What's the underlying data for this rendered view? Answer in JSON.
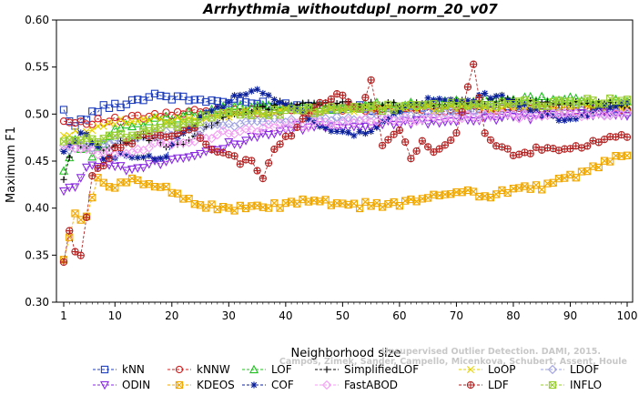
{
  "chart_data": {
    "type": "line",
    "title": "Arrhythmia_withoutdupl_norm_20_v07",
    "xlabel": "Neighborhood size",
    "ylabel": "Maximum F1",
    "xlim": [
      1,
      100
    ],
    "ylim": [
      0.3,
      0.6
    ],
    "x_ticks": [
      1,
      10,
      20,
      30,
      40,
      50,
      60,
      70,
      80,
      90,
      100
    ],
    "y_ticks": [
      "0.30",
      "0.35",
      "0.40",
      "0.45",
      "0.50",
      "0.55",
      "0.60"
    ],
    "grid": false,
    "legend_position": "bottom",
    "annotation_lines": [
      "Campos, Zimek, Sander, Campello, Micenkova, Schubert, Assent, Houle",
      "Unsupervised Outlier Detection. DAMI, 2015."
    ],
    "series": [
      {
        "name": "kNN",
        "color": "#1f3fbf",
        "marker": "square",
        "anchors": [
          [
            1,
            0.503
          ],
          [
            3,
            0.488
          ],
          [
            7,
            0.505
          ],
          [
            12,
            0.512
          ],
          [
            17,
            0.521
          ],
          [
            22,
            0.516
          ],
          [
            30,
            0.513
          ],
          [
            50,
            0.507
          ],
          [
            70,
            0.506
          ],
          [
            90,
            0.507
          ],
          [
            100,
            0.505
          ]
        ]
      },
      {
        "name": "kNNW",
        "color": "#d02020",
        "marker": "circle",
        "anchors": [
          [
            1,
            0.492
          ],
          [
            5,
            0.492
          ],
          [
            10,
            0.493
          ],
          [
            20,
            0.5
          ],
          [
            30,
            0.504
          ],
          [
            50,
            0.505
          ],
          [
            70,
            0.506
          ],
          [
            100,
            0.507
          ]
        ]
      },
      {
        "name": "LOF",
        "color": "#22c022",
        "marker": "triangle-up",
        "anchors": [
          [
            1,
            0.44
          ],
          [
            3,
            0.47
          ],
          [
            6,
            0.458
          ],
          [
            10,
            0.482
          ],
          [
            15,
            0.49
          ],
          [
            20,
            0.497
          ],
          [
            30,
            0.506
          ],
          [
            50,
            0.508
          ],
          [
            70,
            0.512
          ],
          [
            85,
            0.516
          ],
          [
            100,
            0.512
          ]
        ]
      },
      {
        "name": "SimplifiedLOF",
        "color": "#000000",
        "marker": "plus",
        "anchors": [
          [
            1,
            0.432
          ],
          [
            3,
            0.47
          ],
          [
            8,
            0.465
          ],
          [
            15,
            0.475
          ],
          [
            20,
            0.465
          ],
          [
            25,
            0.48
          ],
          [
            30,
            0.498
          ],
          [
            40,
            0.512
          ],
          [
            60,
            0.51
          ],
          [
            80,
            0.514
          ],
          [
            100,
            0.51
          ]
        ]
      },
      {
        "name": "LoOP",
        "color": "#e6d200",
        "marker": "x",
        "anchors": [
          [
            1,
            0.475
          ],
          [
            8,
            0.49
          ],
          [
            20,
            0.495
          ],
          [
            30,
            0.5
          ],
          [
            50,
            0.505
          ],
          [
            70,
            0.506
          ],
          [
            100,
            0.508
          ]
        ]
      },
      {
        "name": "LDOF",
        "color": "#9ea0e0",
        "marker": "diamond",
        "anchors": [
          [
            1,
            0.46
          ],
          [
            10,
            0.47
          ],
          [
            20,
            0.48
          ],
          [
            30,
            0.49
          ],
          [
            50,
            0.495
          ],
          [
            70,
            0.5
          ],
          [
            100,
            0.502
          ]
        ]
      },
      {
        "name": "ODIN",
        "color": "#8a2be2",
        "marker": "triangle-down",
        "anchors": [
          [
            1,
            0.418
          ],
          [
            3,
            0.425
          ],
          [
            6,
            0.448
          ],
          [
            12,
            0.443
          ],
          [
            17,
            0.448
          ],
          [
            22,
            0.455
          ],
          [
            32,
            0.47
          ],
          [
            42,
            0.485
          ],
          [
            55,
            0.488
          ],
          [
            70,
            0.495
          ],
          [
            90,
            0.498
          ],
          [
            100,
            0.499
          ]
        ]
      },
      {
        "name": "KDEOS",
        "color": "#f0a800",
        "marker": "square-x",
        "anchors": [
          [
            1,
            0.345
          ],
          [
            3,
            0.392
          ],
          [
            5,
            0.39
          ],
          [
            7,
            0.43
          ],
          [
            10,
            0.42
          ],
          [
            13,
            0.432
          ],
          [
            17,
            0.425
          ],
          [
            20,
            0.418
          ],
          [
            24,
            0.406
          ],
          [
            28,
            0.4
          ],
          [
            35,
            0.4
          ],
          [
            45,
            0.408
          ],
          [
            50,
            0.402
          ],
          [
            60,
            0.405
          ],
          [
            65,
            0.41
          ],
          [
            70,
            0.418
          ],
          [
            72,
            0.42
          ],
          [
            75,
            0.412
          ],
          [
            80,
            0.42
          ],
          [
            85,
            0.423
          ],
          [
            90,
            0.433
          ],
          [
            95,
            0.445
          ],
          [
            100,
            0.457
          ]
        ]
      },
      {
        "name": "COF",
        "color": "#0a1f9a",
        "marker": "asterisk",
        "anchors": [
          [
            1,
            0.46
          ],
          [
            4,
            0.48
          ],
          [
            6,
            0.47
          ],
          [
            8,
            0.455
          ],
          [
            12,
            0.458
          ],
          [
            18,
            0.45
          ],
          [
            22,
            0.48
          ],
          [
            26,
            0.5
          ],
          [
            32,
            0.52
          ],
          [
            36,
            0.525
          ],
          [
            40,
            0.51
          ],
          [
            46,
            0.49
          ],
          [
            50,
            0.478
          ],
          [
            54,
            0.48
          ],
          [
            58,
            0.495
          ],
          [
            62,
            0.51
          ],
          [
            66,
            0.515
          ],
          [
            70,
            0.512
          ],
          [
            75,
            0.52
          ],
          [
            80,
            0.515
          ],
          [
            85,
            0.498
          ],
          [
            90,
            0.495
          ],
          [
            95,
            0.505
          ],
          [
            100,
            0.51
          ]
        ]
      },
      {
        "name": "FastABOD",
        "color": "#f39cf3",
        "marker": "diamond",
        "anchors": [
          [
            1,
            0.47
          ],
          [
            5,
            0.46
          ],
          [
            10,
            0.458
          ],
          [
            20,
            0.47
          ],
          [
            30,
            0.48
          ],
          [
            40,
            0.488
          ],
          [
            60,
            0.494
          ],
          [
            80,
            0.498
          ],
          [
            100,
            0.5
          ]
        ]
      },
      {
        "name": "LDF",
        "color": "#b22222",
        "marker": "circle-plus",
        "anchors": [
          [
            1,
            0.342
          ],
          [
            2,
            0.373
          ],
          [
            3,
            0.352
          ],
          [
            4,
            0.348
          ],
          [
            6,
            0.432
          ],
          [
            10,
            0.462
          ],
          [
            15,
            0.478
          ],
          [
            20,
            0.478
          ],
          [
            24,
            0.482
          ],
          [
            28,
            0.46
          ],
          [
            32,
            0.45
          ],
          [
            34,
            0.45
          ],
          [
            36,
            0.432
          ],
          [
            38,
            0.463
          ],
          [
            42,
            0.485
          ],
          [
            46,
            0.512
          ],
          [
            50,
            0.52
          ],
          [
            53,
            0.505
          ],
          [
            55,
            0.537
          ],
          [
            57,
            0.47
          ],
          [
            60,
            0.482
          ],
          [
            62,
            0.455
          ],
          [
            64,
            0.468
          ],
          [
            66,
            0.458
          ],
          [
            70,
            0.478
          ],
          [
            73,
            0.552
          ],
          [
            75,
            0.478
          ],
          [
            77,
            0.468
          ],
          [
            80,
            0.458
          ],
          [
            85,
            0.462
          ],
          [
            90,
            0.462
          ],
          [
            95,
            0.47
          ],
          [
            100,
            0.477
          ]
        ]
      },
      {
        "name": "INFLO",
        "color": "#9acd32",
        "marker": "square-x",
        "anchors": [
          [
            1,
            0.47
          ],
          [
            6,
            0.472
          ],
          [
            12,
            0.478
          ],
          [
            20,
            0.488
          ],
          [
            30,
            0.5
          ],
          [
            50,
            0.505
          ],
          [
            70,
            0.51
          ],
          [
            90,
            0.512
          ],
          [
            100,
            0.515
          ]
        ]
      }
    ],
    "legend_rows": [
      [
        "kNN",
        "kNNW",
        "LOF",
        "SimplifiedLOF",
        "LoOP",
        "LDOF"
      ],
      [
        "ODIN",
        "KDEOS",
        "COF",
        "FastABOD",
        "LDF",
        "INFLO"
      ]
    ]
  }
}
